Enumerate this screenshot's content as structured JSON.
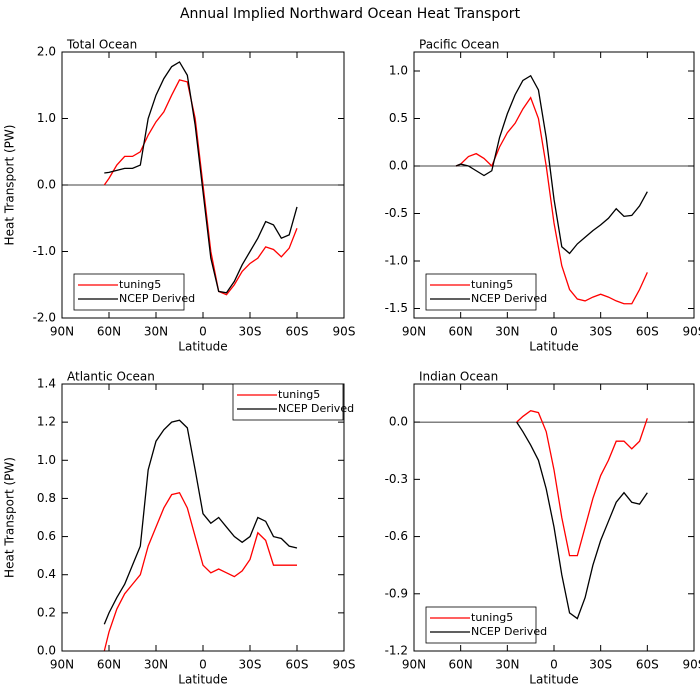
{
  "title": "Annual Implied Northward Ocean Heat Transport",
  "chart_data": [
    {
      "type": "line",
      "title": "Total Ocean",
      "xlabel": "Latitude",
      "ylabel": "Heat Transport (PW)",
      "xlim": [
        90,
        -90
      ],
      "ylim": [
        -2,
        2
      ],
      "xticks": [
        {
          "value": 90,
          "label": "90N"
        },
        {
          "value": 60,
          "label": "60N"
        },
        {
          "value": 30,
          "label": "30N"
        },
        0,
        {
          "value": -30,
          "label": "30S"
        },
        {
          "value": -60,
          "label": "60S"
        },
        {
          "value": -90,
          "label": "90S"
        }
      ],
      "yticks": [
        {
          "value": -2,
          "label": "-2.0"
        },
        {
          "value": -1,
          "label": "-1.0"
        },
        {
          "value": 0,
          "label": "0.0"
        },
        {
          "value": 1,
          "label": "1.0"
        },
        {
          "value": 2,
          "label": "2.0"
        }
      ],
      "legend": "lower left",
      "x": [
        63,
        60,
        55,
        50,
        45,
        40,
        35,
        30,
        25,
        20,
        15,
        10,
        5,
        0,
        -5,
        -10,
        -15,
        -20,
        -25,
        -30,
        -35,
        -40,
        -45,
        -50,
        -55,
        -60
      ],
      "series": [
        {
          "name": "tuning5",
          "color": "#ff0000",
          "values": [
            0.0,
            0.1,
            0.3,
            0.43,
            0.43,
            0.5,
            0.75,
            0.95,
            1.1,
            1.35,
            1.58,
            1.55,
            1.0,
            0.0,
            -1.0,
            -1.6,
            -1.65,
            -1.5,
            -1.3,
            -1.18,
            -1.1,
            -0.93,
            -0.97,
            -1.08,
            -0.95,
            -0.65
          ]
        },
        {
          "name": "NCEP Derived",
          "color": "#000000",
          "values": [
            0.18,
            0.19,
            0.22,
            0.25,
            0.25,
            0.3,
            1.0,
            1.35,
            1.6,
            1.78,
            1.85,
            1.65,
            0.9,
            -0.1,
            -1.1,
            -1.6,
            -1.62,
            -1.45,
            -1.2,
            -1.0,
            -0.8,
            -0.55,
            -0.6,
            -0.8,
            -0.75,
            -0.33
          ]
        }
      ]
    },
    {
      "type": "line",
      "title": "Pacific Ocean",
      "xlabel": "Latitude",
      "xlim": [
        90,
        -90
      ],
      "ylim": [
        -1.6,
        1.2
      ],
      "xticks": [
        {
          "value": 90,
          "label": "90N"
        },
        {
          "value": 60,
          "label": "60N"
        },
        {
          "value": 30,
          "label": "30N"
        },
        0,
        {
          "value": -30,
          "label": "30S"
        },
        {
          "value": -60,
          "label": "60S"
        },
        {
          "value": -90,
          "label": "90S"
        }
      ],
      "yticks": [
        -1.5,
        {
          "value": -1,
          "label": "-1.0"
        },
        -0.5,
        {
          "value": 0,
          "label": "0.0"
        },
        0.5,
        {
          "value": 1,
          "label": "1.0"
        }
      ],
      "legend": "lower left",
      "x": [
        63,
        60,
        55,
        50,
        45,
        40,
        35,
        30,
        25,
        20,
        15,
        10,
        5,
        0,
        -5,
        -10,
        -15,
        -20,
        -25,
        -30,
        -35,
        -40,
        -45,
        -50,
        -55,
        -60
      ],
      "series": [
        {
          "name": "tuning5",
          "color": "#ff0000",
          "values": [
            0.0,
            0.02,
            0.1,
            0.13,
            0.08,
            0.0,
            0.2,
            0.35,
            0.45,
            0.6,
            0.72,
            0.5,
            0.0,
            -0.6,
            -1.05,
            -1.3,
            -1.4,
            -1.42,
            -1.38,
            -1.35,
            -1.38,
            -1.42,
            -1.45,
            -1.45,
            -1.3,
            -1.12
          ]
        },
        {
          "name": "NCEP Derived",
          "color": "#000000",
          "values": [
            0.0,
            0.02,
            0.0,
            -0.05,
            -0.1,
            -0.05,
            0.3,
            0.55,
            0.75,
            0.9,
            0.95,
            0.8,
            0.3,
            -0.35,
            -0.85,
            -0.92,
            -0.82,
            -0.75,
            -0.68,
            -0.62,
            -0.55,
            -0.45,
            -0.53,
            -0.52,
            -0.42,
            -0.27
          ]
        }
      ]
    },
    {
      "type": "line",
      "title": "Atlantic Ocean",
      "xlabel": "Latitude",
      "ylabel": "Heat Transport (PW)",
      "xlim": [
        90,
        -90
      ],
      "ylim": [
        0,
        1.4
      ],
      "xticks": [
        {
          "value": 90,
          "label": "90N"
        },
        {
          "value": 60,
          "label": "60N"
        },
        {
          "value": 30,
          "label": "30N"
        },
        0,
        {
          "value": -30,
          "label": "30S"
        },
        {
          "value": -60,
          "label": "60S"
        },
        {
          "value": -90,
          "label": "90S"
        }
      ],
      "yticks": [
        {
          "value": 0,
          "label": "0.0"
        },
        0.2,
        0.4,
        0.6,
        0.8,
        {
          "value": 1,
          "label": "1.0"
        },
        1.2,
        1.4
      ],
      "legend": "upper right",
      "x": [
        63,
        60,
        55,
        50,
        45,
        40,
        35,
        30,
        25,
        20,
        15,
        10,
        5,
        0,
        -5,
        -10,
        -15,
        -20,
        -25,
        -30,
        -35,
        -40,
        -45,
        -50,
        -55,
        -60
      ],
      "series": [
        {
          "name": "tuning5",
          "color": "#ff0000",
          "values": [
            0.0,
            0.1,
            0.22,
            0.3,
            0.35,
            0.4,
            0.55,
            0.65,
            0.75,
            0.82,
            0.83,
            0.75,
            0.6,
            0.45,
            0.41,
            0.43,
            0.41,
            0.39,
            0.42,
            0.48,
            0.62,
            0.58,
            0.45,
            0.45,
            0.45,
            0.45
          ]
        },
        {
          "name": "NCEP Derived",
          "color": "#000000",
          "values": [
            0.14,
            0.2,
            0.28,
            0.35,
            0.45,
            0.55,
            0.95,
            1.1,
            1.16,
            1.2,
            1.21,
            1.17,
            0.95,
            0.72,
            0.67,
            0.7,
            0.65,
            0.6,
            0.57,
            0.6,
            0.7,
            0.68,
            0.6,
            0.59,
            0.55,
            0.54
          ]
        }
      ]
    },
    {
      "type": "line",
      "title": "Indian Ocean",
      "xlabel": "Latitude",
      "xlim": [
        90,
        -90
      ],
      "ylim": [
        -1.2,
        0.2
      ],
      "xticks": [
        {
          "value": 90,
          "label": "90N"
        },
        {
          "value": 60,
          "label": "60N"
        },
        {
          "value": 30,
          "label": "30N"
        },
        0,
        {
          "value": -30,
          "label": "30S"
        },
        {
          "value": -60,
          "label": "60S"
        },
        {
          "value": -90,
          "label": "90S"
        }
      ],
      "yticks": [
        -1.2,
        -0.9,
        -0.6,
        -0.3,
        {
          "value": 0,
          "label": "0.0"
        }
      ],
      "legend": "lower left",
      "x": [
        24,
        20,
        15,
        10,
        5,
        0,
        -5,
        -10,
        -15,
        -20,
        -25,
        -30,
        -35,
        -40,
        -45,
        -50,
        -55,
        -60
      ],
      "series": [
        {
          "name": "tuning5",
          "color": "#ff0000",
          "values": [
            0.0,
            0.03,
            0.06,
            0.05,
            -0.05,
            -0.25,
            -0.5,
            -0.7,
            -0.7,
            -0.55,
            -0.4,
            -0.28,
            -0.2,
            -0.1,
            -0.1,
            -0.14,
            -0.1,
            0.02
          ]
        },
        {
          "name": "NCEP Derived",
          "color": "#000000",
          "values": [
            0.0,
            -0.05,
            -0.12,
            -0.2,
            -0.35,
            -0.55,
            -0.8,
            -1.0,
            -1.03,
            -0.92,
            -0.75,
            -0.62,
            -0.52,
            -0.42,
            -0.37,
            -0.42,
            -0.43,
            -0.37
          ]
        }
      ]
    }
  ]
}
